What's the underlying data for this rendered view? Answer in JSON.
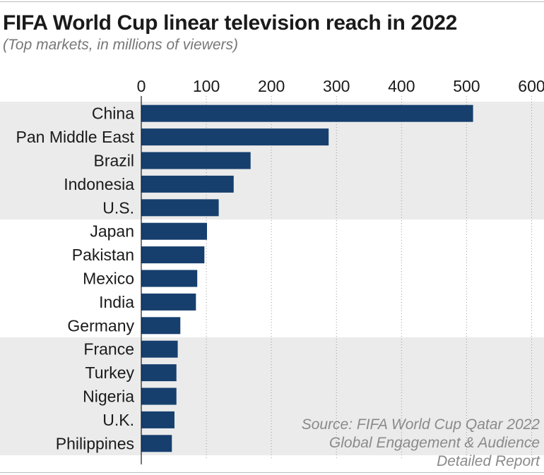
{
  "title": "FIFA World Cup linear television reach in 2022",
  "subtitle": "(Top markets, in millions of viewers)",
  "source": "Source: FIFA World Cup Qatar 2022 Global Engagement & Audience Detailed Report",
  "colors": {
    "bar": "#163f6e",
    "band": "#ebebeb",
    "grid": "#999999"
  },
  "chart_data": {
    "type": "bar",
    "orientation": "horizontal",
    "title": "FIFA World Cup linear television reach in 2022",
    "subtitle": "(Top markets, in millions of viewers)",
    "xlim": [
      0,
      600
    ],
    "x_ticks": [
      0,
      100,
      200,
      300,
      400,
      500,
      600
    ],
    "x_tick_labels": [
      "0",
      "100",
      "200",
      "300",
      "400",
      "500",
      "600"
    ],
    "tick_position": "top",
    "grid": "vertical dotted",
    "categories": [
      "China",
      "Pan Middle East",
      "Brazil",
      "Indonesia",
      "U.S.",
      "Japan",
      "Pakistan",
      "Mexico",
      "India",
      "Germany",
      "France",
      "Turkey",
      "Nigeria",
      "U.K.",
      "Philippines"
    ],
    "values": [
      510,
      288,
      168,
      142,
      119,
      101,
      97,
      86,
      84,
      60,
      56,
      54,
      54,
      51,
      47
    ]
  }
}
